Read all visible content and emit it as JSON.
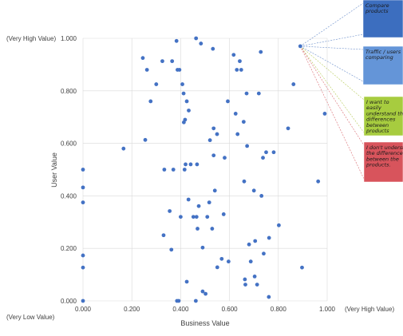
{
  "chart_data": {
    "type": "scatter",
    "xlabel": "Business Value",
    "ylabel": "User Value",
    "xlim": [
      0,
      1
    ],
    "ylim": [
      0,
      1
    ],
    "grid": true,
    "x_ticks": [
      "0.000",
      "0.200",
      "0.400",
      "0.600",
      "0.800",
      "1.000"
    ],
    "y_ticks": [
      "0.000",
      "0.200",
      "0.400",
      "0.600",
      "0.800",
      "1.000"
    ],
    "corner_labels": {
      "top_left": "(Very High Value)",
      "bottom_left": "(Very Low Value)",
      "bottom_right": "(Very High Value)"
    },
    "point_color": "#4472C4",
    "points": [
      {
        "x": 0.0,
        "y": 0.5
      },
      {
        "x": 0.0,
        "y": 0.432
      },
      {
        "x": 0.0,
        "y": 0.375
      },
      {
        "x": 0.0,
        "y": 0.173
      },
      {
        "x": 0.0,
        "y": 0.127
      },
      {
        "x": 0.0,
        "y": 0.0
      },
      {
        "x": 0.166,
        "y": 0.58
      },
      {
        "x": 0.245,
        "y": 0.925
      },
      {
        "x": 0.262,
        "y": 0.88
      },
      {
        "x": 0.255,
        "y": 0.613
      },
      {
        "x": 0.277,
        "y": 0.76
      },
      {
        "x": 0.3,
        "y": 0.825
      },
      {
        "x": 0.325,
        "y": 0.913
      },
      {
        "x": 0.33,
        "y": 0.25
      },
      {
        "x": 0.333,
        "y": 0.5
      },
      {
        "x": 0.355,
        "y": 0.342
      },
      {
        "x": 0.362,
        "y": 0.195
      },
      {
        "x": 0.365,
        "y": 0.913
      },
      {
        "x": 0.37,
        "y": 0.5
      },
      {
        "x": 0.383,
        "y": 0.99
      },
      {
        "x": 0.387,
        "y": 0.88
      },
      {
        "x": 0.385,
        "y": 0.0
      },
      {
        "x": 0.392,
        "y": 0.0
      },
      {
        "x": 0.395,
        "y": 0.88
      },
      {
        "x": 0.4,
        "y": 0.32
      },
      {
        "x": 0.407,
        "y": 0.825
      },
      {
        "x": 0.412,
        "y": 0.79
      },
      {
        "x": 0.413,
        "y": 0.68
      },
      {
        "x": 0.418,
        "y": 0.69
      },
      {
        "x": 0.42,
        "y": 0.52
      },
      {
        "x": 0.416,
        "y": 0.5
      },
      {
        "x": 0.425,
        "y": 0.76
      },
      {
        "x": 0.425,
        "y": 0.073
      },
      {
        "x": 0.433,
        "y": 0.725
      },
      {
        "x": 0.432,
        "y": 0.386
      },
      {
        "x": 0.441,
        "y": 0.52
      },
      {
        "x": 0.452,
        "y": 0.32
      },
      {
        "x": 0.463,
        "y": 1.0
      },
      {
        "x": 0.465,
        "y": 0.32
      },
      {
        "x": 0.467,
        "y": 0.52
      },
      {
        "x": 0.469,
        "y": 0.275
      },
      {
        "x": 0.474,
        "y": 0.361
      },
      {
        "x": 0.462,
        "y": 0.0
      },
      {
        "x": 0.483,
        "y": 0.98
      },
      {
        "x": 0.49,
        "y": 0.203
      },
      {
        "x": 0.49,
        "y": 0.036
      },
      {
        "x": 0.502,
        "y": 0.027
      },
      {
        "x": 0.509,
        "y": 0.32
      },
      {
        "x": 0.517,
        "y": 0.375
      },
      {
        "x": 0.52,
        "y": 0.612
      },
      {
        "x": 0.529,
        "y": 0.275
      },
      {
        "x": 0.532,
        "y": 0.96
      },
      {
        "x": 0.535,
        "y": 0.657
      },
      {
        "x": 0.535,
        "y": 0.554
      },
      {
        "x": 0.54,
        "y": 0.42
      },
      {
        "x": 0.549,
        "y": 0.635
      },
      {
        "x": 0.55,
        "y": 0.128
      },
      {
        "x": 0.568,
        "y": 0.16
      },
      {
        "x": 0.576,
        "y": 0.33
      },
      {
        "x": 0.58,
        "y": 0.545
      },
      {
        "x": 0.593,
        "y": 0.76
      },
      {
        "x": 0.596,
        "y": 0.15
      },
      {
        "x": 0.617,
        "y": 0.937
      },
      {
        "x": 0.625,
        "y": 0.713
      },
      {
        "x": 0.63,
        "y": 0.88
      },
      {
        "x": 0.633,
        "y": 0.635
      },
      {
        "x": 0.642,
        "y": 0.913
      },
      {
        "x": 0.648,
        "y": 0.88
      },
      {
        "x": 0.658,
        "y": 0.682
      },
      {
        "x": 0.66,
        "y": 0.455
      },
      {
        "x": 0.663,
        "y": 0.082
      },
      {
        "x": 0.665,
        "y": 0.062
      },
      {
        "x": 0.67,
        "y": 0.79
      },
      {
        "x": 0.672,
        "y": 0.59
      },
      {
        "x": 0.68,
        "y": 0.215
      },
      {
        "x": 0.687,
        "y": 0.15
      },
      {
        "x": 0.7,
        "y": 0.42
      },
      {
        "x": 0.703,
        "y": 0.093
      },
      {
        "x": 0.705,
        "y": 0.228
      },
      {
        "x": 0.713,
        "y": 0.062
      },
      {
        "x": 0.72,
        "y": 0.79
      },
      {
        "x": 0.728,
        "y": 0.948
      },
      {
        "x": 0.731,
        "y": 0.4
      },
      {
        "x": 0.737,
        "y": 0.545
      },
      {
        "x": 0.74,
        "y": 0.18
      },
      {
        "x": 0.75,
        "y": 0.566
      },
      {
        "x": 0.761,
        "y": 0.015
      },
      {
        "x": 0.762,
        "y": 0.24
      },
      {
        "x": 0.781,
        "y": 0.566
      },
      {
        "x": 0.802,
        "y": 0.288
      },
      {
        "x": 0.84,
        "y": 0.657
      },
      {
        "x": 0.862,
        "y": 0.825
      },
      {
        "x": 0.897,
        "y": 0.127
      },
      {
        "x": 0.89,
        "y": 0.97
      },
      {
        "x": 0.963,
        "y": 0.455
      },
      {
        "x": 0.99,
        "y": 0.713
      }
    ],
    "annotations": [
      {
        "text": "Compare products",
        "bg": "#3C6EBF"
      },
      {
        "text": "Traffic / users comparing",
        "bg": "#6495D8"
      },
      {
        "text": "I want to easily understand the differences between products",
        "bg": "#A7CC3F"
      },
      {
        "text": "I don't understand the difference between the products.",
        "bg": "#D8545C"
      }
    ],
    "leader_colors": [
      "#6C8FCB",
      "#6C8FCB",
      "#B7CB5A",
      "#D96A70"
    ]
  }
}
